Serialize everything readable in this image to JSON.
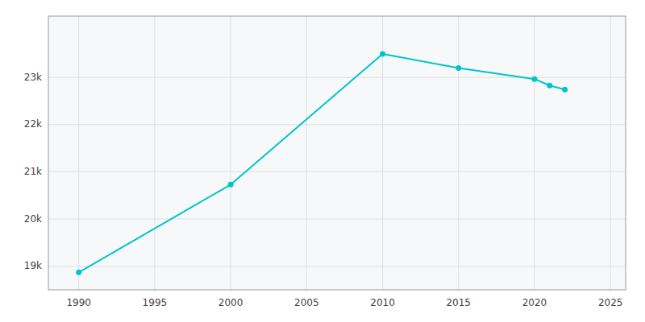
{
  "chart_data": {
    "type": "line",
    "x": [
      1990,
      2000,
      2010,
      2015,
      2020,
      2021,
      2022
    ],
    "values": [
      18870,
      20730,
      23499,
      23200,
      22966,
      22828,
      22742
    ],
    "color": "#00C5C8",
    "marker": "circle",
    "xlim": [
      1988,
      2026
    ],
    "ylim": [
      18500,
      24300
    ],
    "xticks": [
      1990,
      1995,
      2000,
      2005,
      2010,
      2015,
      2020,
      2025
    ],
    "yticks": [
      {
        "value": 19000,
        "label": "19k"
      },
      {
        "value": 20000,
        "label": "20k"
      },
      {
        "value": 21000,
        "label": "21k"
      },
      {
        "value": 22000,
        "label": "22k"
      },
      {
        "value": 23000,
        "label": "23k"
      }
    ],
    "grid": true
  }
}
